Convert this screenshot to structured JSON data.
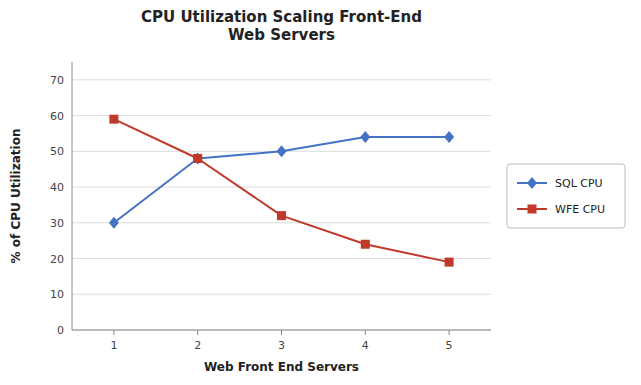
{
  "chart_data": {
    "type": "line",
    "title": "CPU Utilization Scaling Front-End\nWeb Servers",
    "x_label": "Web Front End Servers",
    "y_label": "% of CPU Utilization",
    "x": [
      1,
      2,
      3,
      4,
      5
    ],
    "series": [
      {
        "name": "SQL CPU",
        "color": "#4472C4",
        "marker": "diamond",
        "values": [
          30,
          48,
          50,
          54,
          54
        ]
      },
      {
        "name": "WFE CPU",
        "color": "#C0392B",
        "marker": "square",
        "values": [
          59,
          48,
          32,
          24,
          19
        ]
      }
    ],
    "xlim": [
      0.5,
      5.5
    ],
    "xticks": [
      1,
      2,
      3,
      4,
      5
    ],
    "ylim": [
      0,
      75
    ],
    "yticks": [
      0,
      10,
      20,
      30,
      40,
      50,
      60,
      70
    ],
    "grid": true,
    "legend": "right"
  }
}
